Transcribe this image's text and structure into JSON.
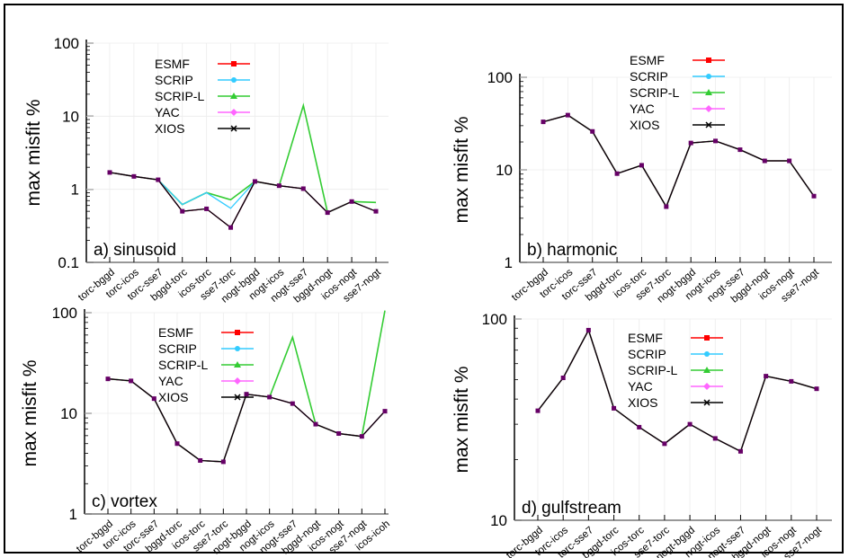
{
  "colors": {
    "ESMF": "#ff0000",
    "SCRIP": "#33ccff",
    "SCRIP-L": "#33cc33",
    "YAC": "#ff66ff",
    "XIOS": "#000000",
    "markers": "#660066",
    "frame": "#000000"
  },
  "legend_labels": [
    "ESMF",
    "SCRIP",
    "SCRIP-L",
    "YAC",
    "XIOS"
  ],
  "chart_data": [
    {
      "type": "line",
      "scale": "log",
      "panel_label": "a) sinusoid",
      "ylabel": "max misfit %",
      "ylim": [
        0.1,
        100
      ],
      "yticks": [
        0.1,
        1,
        10,
        100
      ],
      "ytick_labels": [
        "0.1",
        "1",
        "10",
        "100"
      ],
      "categories": [
        "torc-bggd",
        "torc-icos",
        "torc-sse7",
        "bggd-torc",
        "icos-torc",
        "sse7-torc",
        "nogt-bggd",
        "nogt-icos",
        "nogt-sse7",
        "bggd-nogt",
        "icos-nogt",
        "sse7-nogt"
      ],
      "legend": "top-center",
      "grid": true,
      "series": [
        {
          "name": "ESMF",
          "values": [
            1.7,
            1.5,
            1.35,
            0.5,
            0.54,
            0.3,
            1.28,
            1.12,
            1.02,
            0.48,
            0.68,
            0.5
          ]
        },
        {
          "name": "SCRIP",
          "values": [
            1.7,
            1.5,
            1.35,
            0.62,
            0.9,
            0.55,
            1.28,
            1.12,
            1.02,
            0.48,
            0.68,
            0.5
          ]
        },
        {
          "name": "SCRIP-L",
          "values": [
            1.7,
            1.5,
            1.35,
            0.62,
            0.9,
            0.72,
            1.28,
            1.12,
            14,
            0.48,
            0.68,
            0.66
          ]
        },
        {
          "name": "YAC",
          "values": [
            1.7,
            1.5,
            1.35,
            0.5,
            0.54,
            0.3,
            1.28,
            1.12,
            1.02,
            0.48,
            0.68,
            0.5
          ]
        },
        {
          "name": "XIOS",
          "values": [
            1.7,
            1.5,
            1.35,
            0.5,
            0.54,
            0.3,
            1.28,
            1.12,
            1.02,
            0.48,
            0.68,
            0.5
          ]
        }
      ]
    },
    {
      "type": "line",
      "scale": "log",
      "panel_label": "b) harmonic",
      "ylabel": "max misfit %",
      "ylim": [
        1,
        100
      ],
      "yticks": [
        1,
        10,
        100
      ],
      "ytick_labels": [
        "1",
        "10",
        "100"
      ],
      "categories": [
        "torc-bggd",
        "torc-icos",
        "torc-sse7",
        "bggd-torc",
        "icos-torc",
        "sse7-torc",
        "nogt-bggd",
        "nogt-icos",
        "nogt-sse7",
        "bggd-nogt",
        "icos-nogt",
        "sse7-nogt"
      ],
      "legend": "top-center",
      "grid": true,
      "series": [
        {
          "name": "ESMF",
          "values": [
            33,
            39,
            26,
            9.1,
            11.2,
            4.0,
            19.5,
            20.5,
            16.5,
            12.5,
            12.5,
            5.2
          ]
        },
        {
          "name": "SCRIP",
          "values": [
            33,
            39,
            26,
            9.1,
            11.2,
            4.0,
            19.5,
            20.5,
            16.5,
            12.5,
            12.5,
            5.2
          ]
        },
        {
          "name": "SCRIP-L",
          "values": [
            33,
            39,
            26,
            9.1,
            11.2,
            4.0,
            19.5,
            20.5,
            16.5,
            12.5,
            12.5,
            5.2
          ]
        },
        {
          "name": "YAC",
          "values": [
            33,
            39,
            26,
            9.1,
            11.2,
            4.0,
            19.5,
            20.5,
            16.5,
            12.5,
            12.5,
            5.2
          ]
        },
        {
          "name": "XIOS",
          "values": [
            33,
            39,
            26,
            9.1,
            11.2,
            4.0,
            19.5,
            20.5,
            16.5,
            12.5,
            12.5,
            5.2
          ]
        }
      ]
    },
    {
      "type": "line",
      "scale": "log",
      "panel_label": "c) vortex",
      "ylabel": "max misfit %",
      "ylim": [
        1,
        100
      ],
      "yticks": [
        1,
        10,
        100
      ],
      "ytick_labels": [
        "1",
        "10",
        "100"
      ],
      "categories": [
        "torc-bggd",
        "torc-icos",
        "torc-sse7",
        "bggd-torc",
        "icos-torc",
        "sse7-torc",
        "nogt-bggd",
        "nogt-icos",
        "nogt-sse7",
        "bggd-nogt",
        "icos-nogt",
        "sse7-nogt",
        "icos-icoh"
      ],
      "legend": "top-center",
      "grid": true,
      "series": [
        {
          "name": "ESMF",
          "values": [
            22,
            21,
            14,
            5.0,
            3.4,
            3.3,
            15.5,
            14.5,
            12.5,
            7.8,
            6.3,
            5.9,
            10.5
          ]
        },
        {
          "name": "SCRIP",
          "values": [
            22,
            21,
            14,
            5.0,
            3.4,
            3.3,
            15.5,
            14.5,
            12.5,
            7.8,
            6.3,
            5.9,
            10.5
          ]
        },
        {
          "name": "SCRIP-L",
          "values": [
            22,
            21,
            14,
            5.0,
            3.4,
            3.3,
            15.5,
            14.5,
            57,
            7.8,
            6.3,
            5.9,
            105
          ]
        },
        {
          "name": "YAC",
          "values": [
            22,
            21,
            14,
            5.0,
            3.4,
            3.3,
            15.5,
            14.5,
            12.5,
            7.8,
            6.3,
            5.9,
            10.5
          ]
        },
        {
          "name": "XIOS",
          "values": [
            22,
            21,
            14,
            5.0,
            3.4,
            3.3,
            15.5,
            14.5,
            12.5,
            7.8,
            6.3,
            5.9,
            10.5
          ]
        }
      ]
    },
    {
      "type": "line",
      "scale": "log",
      "panel_label": "d) gulfstream",
      "ylabel": "max misfit %",
      "ylim": [
        10,
        100
      ],
      "yticks": [
        10,
        100
      ],
      "ytick_labels": [
        "10",
        "100"
      ],
      "categories": [
        "torc-bggd",
        "torc-icos",
        "torc-sse7",
        "bggd-torc",
        "icos-torc",
        "sse7-torc",
        "nogt-bggd",
        "nogt-icos",
        "nogt-sse7",
        "bggd-nogt",
        "icos-nogt",
        "sse7-nogt"
      ],
      "legend": "top-center",
      "grid": true,
      "series": [
        {
          "name": "ESMF",
          "values": [
            35,
            51,
            88,
            36,
            29,
            24,
            30,
            25.5,
            22,
            52,
            49,
            45
          ]
        },
        {
          "name": "SCRIP",
          "values": [
            35,
            51,
            88,
            36,
            29,
            24,
            30,
            25.5,
            22,
            52,
            49,
            45
          ]
        },
        {
          "name": "SCRIP-L",
          "values": [
            35,
            51,
            88,
            36,
            29,
            24,
            30,
            25.5,
            22,
            52,
            49,
            45
          ]
        },
        {
          "name": "YAC",
          "values": [
            35,
            51,
            88,
            36,
            29,
            24,
            30,
            25.5,
            22,
            52,
            49,
            45
          ]
        },
        {
          "name": "XIOS",
          "values": [
            35,
            51,
            88,
            36,
            29,
            24,
            30,
            25.5,
            22,
            52,
            49,
            45
          ]
        }
      ]
    }
  ]
}
